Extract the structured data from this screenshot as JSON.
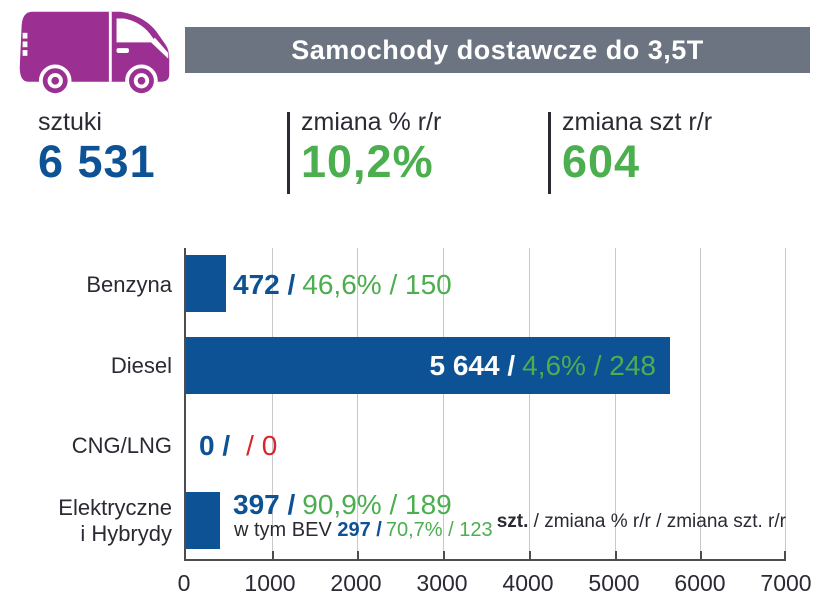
{
  "header": {
    "title": "Samochody dostawcze do 3,5T",
    "banner_color": "#6b7480",
    "van_icon": "delivery-van-icon",
    "van_color": "#9b3092"
  },
  "stats": [
    {
      "label": "sztuki",
      "value": "6 531",
      "color": "#0d5295"
    },
    {
      "label": "zmiana % r/r",
      "value": "10,2%",
      "color": "#4bae4f"
    },
    {
      "label": "zmiana szt r/r",
      "value": "604",
      "color": "#4bae4f"
    }
  ],
  "chart_data": {
    "type": "bar",
    "orientation": "horizontal",
    "title": "Samochody dostawcze do 3,5T",
    "categories": [
      "Benzyna",
      "Diesel",
      "CNG/LNG",
      "Elektryczne i Hybrydy"
    ],
    "values": [
      472,
      5644,
      0,
      397
    ],
    "series": [
      {
        "name": "szt.",
        "values": [
          472,
          5644,
          0,
          397
        ]
      },
      {
        "name": "zmiana % r/r",
        "values": [
          "46,6%",
          "4,6%",
          null,
          "90,9%"
        ]
      },
      {
        "name": "zmiana szt. r/r",
        "values": [
          150,
          248,
          0,
          189
        ]
      }
    ],
    "bev_subset": {
      "label": "w tym BEV",
      "value": 297,
      "pct_change_yoy": "70,7%",
      "unit_change_yoy": 123
    },
    "xlim": [
      0,
      7000
    ],
    "x_tick_labels": [
      "0",
      "1000",
      "2000",
      "3000",
      "4000",
      "5000",
      "6000",
      "7000"
    ],
    "grid": true,
    "legend_position": "bottom-right",
    "bar_color": "#0d5295",
    "rows": [
      {
        "category": "Benzyna",
        "value_label": "472 /",
        "change_label": "46,6% / 150"
      },
      {
        "category": "Diesel",
        "value_label": "5 644 /",
        "change_label": "4,6% / 248"
      },
      {
        "category": "CNG/LNG",
        "value_label": "0 /",
        "change_label": "/ 0"
      },
      {
        "category": "Elektryczne\ni Hybrydy",
        "value_label": "397 /",
        "change_label": "90,9% / 189",
        "sub_prefix": "w tym BEV ",
        "sub_value": "297 /",
        "sub_change": "70,7% / 123"
      }
    ],
    "legend_bold": "szt.",
    "legend_rest": " / zmiana % r/r / zmiana szt. r/r"
  }
}
